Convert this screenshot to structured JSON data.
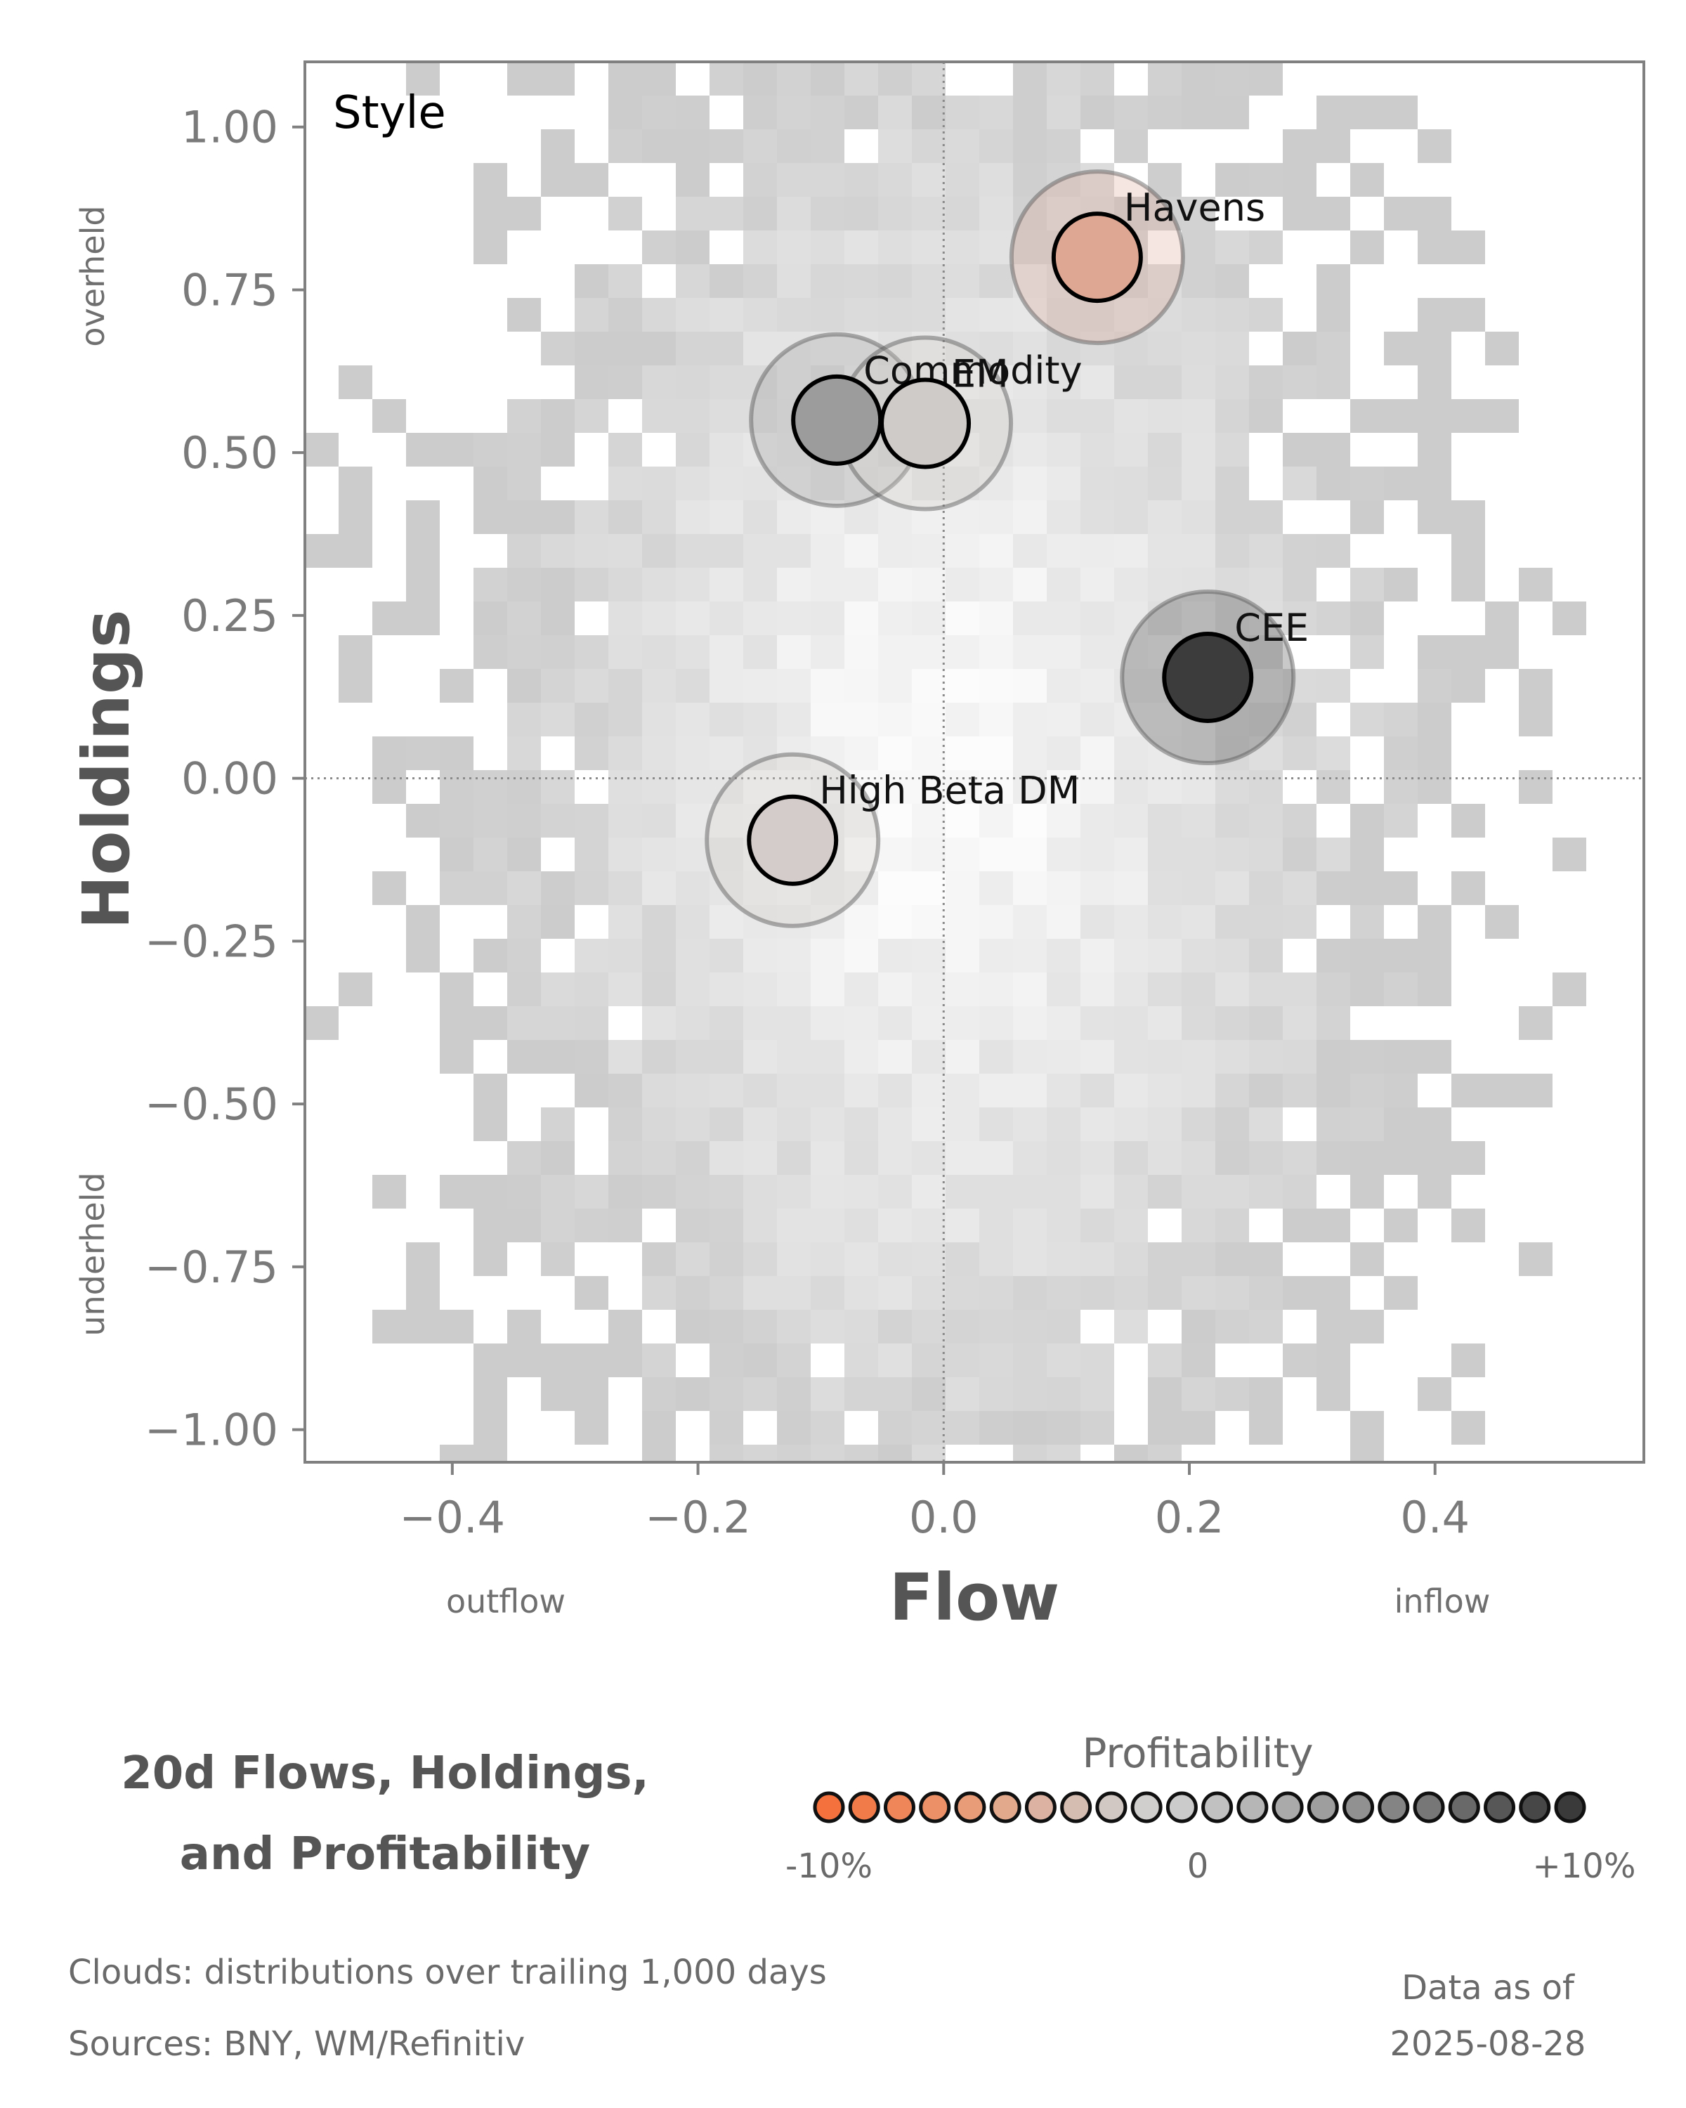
{
  "chart_data": {
    "type": "scatter",
    "panel_label": "Style",
    "xlabel": "Flow",
    "ylabel": "Holdings",
    "xlim": [
      -0.52,
      0.57
    ],
    "ylim": [
      -1.05,
      1.1
    ],
    "xticks": [
      -0.4,
      -0.2,
      0.0,
      0.2,
      0.4
    ],
    "xtick_labels": [
      "−0.4",
      "−0.2",
      "0.0",
      "0.2",
      "0.4"
    ],
    "yticks": [
      1.0,
      0.75,
      0.5,
      0.25,
      0.0,
      -0.25,
      -0.5,
      -0.75,
      -1.0
    ],
    "ytick_labels": [
      "1.00",
      "0.75",
      "0.50",
      "0.25",
      "0.00",
      "−0.25",
      "−0.50",
      "−0.75",
      "−1.00"
    ],
    "x_side_labels": {
      "left": "outflow",
      "right": "inflow"
    },
    "y_side_labels": {
      "top": "overheld",
      "bottom": "underheld"
    },
    "reference_lines": {
      "x": 0.0,
      "y": 0.0
    },
    "background": "heatmap cloud of trailing distributions",
    "points": [
      {
        "label": "Havens",
        "x": 0.125,
        "y": 0.8,
        "profitability": -0.05,
        "color": "#dea794"
      },
      {
        "label": "Commodity",
        "x": -0.087,
        "y": 0.55,
        "profitability": 0.04,
        "color": "#9c9c9c"
      },
      {
        "label": "EM",
        "x": -0.015,
        "y": 0.545,
        "profitability": -0.01,
        "color": "#cfcbc9"
      },
      {
        "label": "CEE",
        "x": 0.215,
        "y": 0.155,
        "profitability": 0.1,
        "color": "#3c3c3c"
      },
      {
        "label": "High Beta DM",
        "x": -0.123,
        "y": -0.095,
        "profitability": -0.02,
        "color": "#d4ccca"
      }
    ]
  },
  "footer": {
    "title_line1": "20d Flows, Holdings,",
    "title_line2": "and Profitability",
    "legend_title": "Profitability",
    "legend_left": "-10%",
    "legend_mid": "0",
    "legend_right": "+10%",
    "legend_colors": [
      "#f4703c",
      "#f27b4a",
      "#ef8659",
      "#ec9167",
      "#e89d78",
      "#e3a98c",
      "#dcb3a2",
      "#d6bdb2",
      "#d2c8c3",
      "#d1cfcd",
      "#cbcbcb",
      "#c1c1c1",
      "#b6b6b6",
      "#aaaaaa",
      "#9e9e9e",
      "#919191",
      "#848484",
      "#777777",
      "#696969",
      "#575757",
      "#474747",
      "#3a3a3a"
    ],
    "note1": "Clouds:  distributions over trailing 1,000 days",
    "note2": "Sources:  BNY, WM/Refinitiv",
    "asof_label": "Data as of",
    "asof_date": "2025-08-28"
  }
}
